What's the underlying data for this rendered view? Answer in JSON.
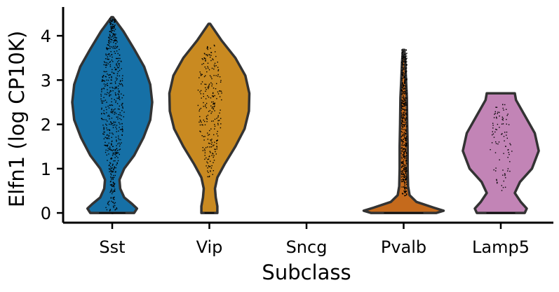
{
  "chart_data": {
    "type": "violin",
    "xlabel": "Subclass",
    "ylabel": "Elfn1 (log CP10K)",
    "ylim": [
      -0.22,
      4.65
    ],
    "yticks": [
      0,
      1,
      2,
      3,
      4
    ],
    "categories": [
      "Sst",
      "Vip",
      "Sncg",
      "Pvalb",
      "Lamp5"
    ],
    "series": [
      {
        "category": "Sst",
        "color": "#1670a6",
        "min": 0,
        "max": 4.42,
        "profile": [
          [
            0,
            0.55
          ],
          [
            0.1,
            0.62
          ],
          [
            0.2,
            0.5
          ],
          [
            0.35,
            0.3
          ],
          [
            0.55,
            0.2
          ],
          [
            0.75,
            0.18
          ],
          [
            1.0,
            0.3
          ],
          [
            1.3,
            0.55
          ],
          [
            1.7,
            0.78
          ],
          [
            2.1,
            0.95
          ],
          [
            2.5,
            1.0
          ],
          [
            2.9,
            0.95
          ],
          [
            3.3,
            0.8
          ],
          [
            3.7,
            0.55
          ],
          [
            4.1,
            0.28
          ],
          [
            4.42,
            0.02
          ]
        ],
        "points": 600,
        "points_range": [
          0,
          4.4
        ]
      },
      {
        "category": "Vip",
        "color": "#c98a21",
        "min": 0,
        "max": 4.27,
        "profile": [
          [
            0,
            0.2
          ],
          [
            0.15,
            0.2
          ],
          [
            0.35,
            0.16
          ],
          [
            0.55,
            0.14
          ],
          [
            0.8,
            0.2
          ],
          [
            1.1,
            0.38
          ],
          [
            1.5,
            0.65
          ],
          [
            1.9,
            0.88
          ],
          [
            2.3,
            0.99
          ],
          [
            2.7,
            1.0
          ],
          [
            3.1,
            0.9
          ],
          [
            3.5,
            0.65
          ],
          [
            3.9,
            0.3
          ],
          [
            4.27,
            0.02
          ]
        ],
        "points": 260,
        "points_range": [
          0.8,
          3.8
        ]
      },
      {
        "category": "Sncg",
        "color": "#999999",
        "min": null,
        "max": null,
        "profile": [],
        "points": 0
      },
      {
        "category": "Pvalb",
        "color": "#c56a1c",
        "min": 0,
        "max": 3.68,
        "profile": [
          [
            0,
            0.82
          ],
          [
            0.05,
            1.0
          ],
          [
            0.12,
            0.75
          ],
          [
            0.25,
            0.32
          ],
          [
            0.4,
            0.15
          ],
          [
            0.6,
            0.11
          ],
          [
            1.0,
            0.1
          ],
          [
            1.5,
            0.1
          ],
          [
            2.0,
            0.09
          ],
          [
            2.6,
            0.08
          ],
          [
            3.0,
            0.06
          ],
          [
            3.4,
            0.04
          ],
          [
            3.68,
            0.02
          ]
        ],
        "points": 500,
        "points_range": [
          0.4,
          3.7
        ]
      },
      {
        "category": "Lamp5",
        "color": "#c284b6",
        "min": 0,
        "max": 2.7,
        "profile": [
          [
            0,
            0.6
          ],
          [
            0.1,
            0.65
          ],
          [
            0.25,
            0.5
          ],
          [
            0.45,
            0.35
          ],
          [
            0.7,
            0.48
          ],
          [
            1.0,
            0.78
          ],
          [
            1.4,
            0.95
          ],
          [
            1.8,
            0.85
          ],
          [
            2.2,
            0.6
          ],
          [
            2.55,
            0.38
          ],
          [
            2.7,
            0.35
          ]
        ],
        "points": 90,
        "points_range": [
          0.5,
          2.5
        ]
      }
    ]
  }
}
